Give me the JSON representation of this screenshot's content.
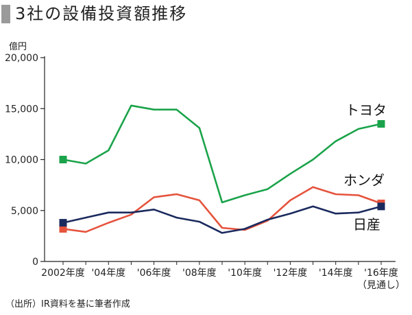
{
  "title": "3社の設備投資額推移",
  "unit_label": "億円",
  "source": "（出所）IR資料を基に筆者作成",
  "chart_data": {
    "type": "line",
    "title": "3社の設備投資額推移",
    "ylabel": "億円",
    "xlabel": "",
    "ylim": [
      0,
      20000
    ],
    "yticks": [
      0,
      5000,
      10000,
      15000,
      20000
    ],
    "ytick_labels": [
      "0",
      "5,000",
      "10,000",
      "15,000",
      "20,000"
    ],
    "x": [
      2002,
      2003,
      2004,
      2005,
      2006,
      2007,
      2008,
      2009,
      2010,
      2011,
      2012,
      2013,
      2014,
      2015,
      2016
    ],
    "xlim": [
      2002,
      2016
    ],
    "xtick_labels": [
      {
        "year": 2002,
        "label": "2002年度"
      },
      {
        "year": 2004,
        "label": "'04年度"
      },
      {
        "year": 2006,
        "label": "'06年度"
      },
      {
        "year": 2008,
        "label": "'08年度"
      },
      {
        "year": 2010,
        "label": "'10年度"
      },
      {
        "year": 2012,
        "label": "'12年度"
      },
      {
        "year": 2014,
        "label": "'14年度"
      },
      {
        "year": 2016,
        "label": "'16年度",
        "sublabel": "（見通し）"
      }
    ],
    "grid": false,
    "series": [
      {
        "name": "トヨタ",
        "color": "#1aa34a",
        "values": [
          10000,
          9600,
          10900,
          15300,
          14900,
          14900,
          13100,
          5800,
          6500,
          7100,
          8600,
          10000,
          11800,
          13000,
          13500
        ]
      },
      {
        "name": "ホンダ",
        "color": "#e5533d",
        "values": [
          3200,
          2900,
          3800,
          4600,
          6300,
          6600,
          6000,
          3300,
          3100,
          4000,
          6000,
          7300,
          6600,
          6500,
          5700
        ]
      },
      {
        "name": "日産",
        "color": "#1b2a5e",
        "values": [
          3800,
          4300,
          4800,
          4800,
          5100,
          4300,
          3900,
          2800,
          3200,
          4100,
          4700,
          5400,
          4700,
          4800,
          5400
        ]
      }
    ]
  }
}
